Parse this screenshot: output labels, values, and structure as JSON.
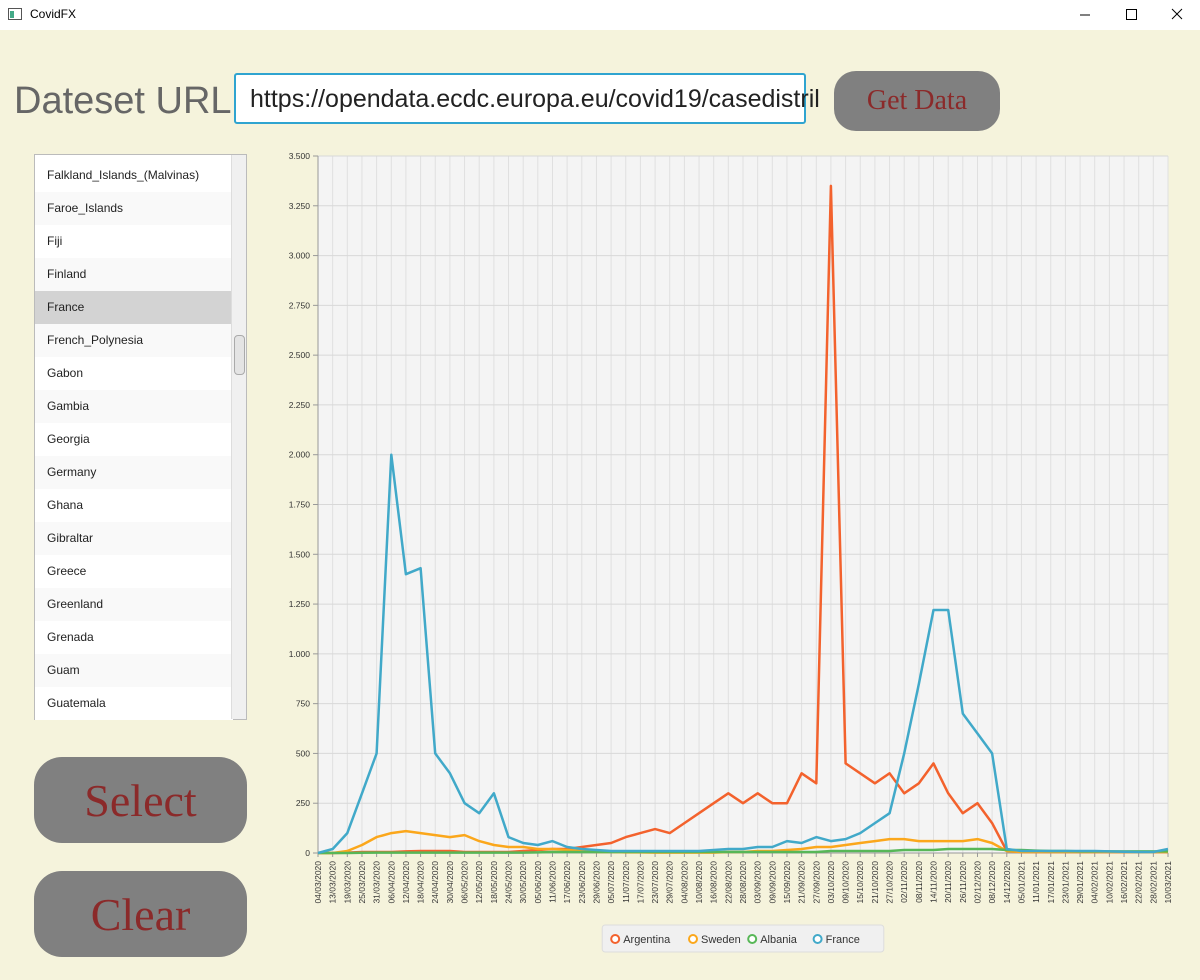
{
  "window": {
    "title": "CovidFX"
  },
  "url_label": "Dateset URL:",
  "url_value": "https://opendata.ecdc.europa.eu/covid19/casedistril",
  "get_data_button": "Get Data",
  "country_list": {
    "items": [
      "Falkland_Islands_(Malvinas)",
      "Faroe_Islands",
      "Fiji",
      "Finland",
      "France",
      "French_Polynesia",
      "Gabon",
      "Gambia",
      "Georgia",
      "Germany",
      "Ghana",
      "Gibraltar",
      "Greece",
      "Greenland",
      "Grenada",
      "Guam",
      "Guatemala"
    ],
    "selected": 4
  },
  "select_button": "Select",
  "clear_button": "Clear",
  "chart_data": {
    "type": "line",
    "categories": [
      "04/03/2020",
      "13/03/2020",
      "19/03/2020",
      "25/03/2020",
      "31/03/2020",
      "06/04/2020",
      "12/04/2020",
      "18/04/2020",
      "24/04/2020",
      "30/04/2020",
      "06/05/2020",
      "12/05/2020",
      "18/05/2020",
      "24/05/2020",
      "30/05/2020",
      "05/06/2020",
      "11/06/2020",
      "17/06/2020",
      "23/06/2020",
      "29/06/2020",
      "05/07/2020",
      "11/07/2020",
      "17/07/2020",
      "23/07/2020",
      "29/07/2020",
      "04/08/2020",
      "10/08/2020",
      "16/08/2020",
      "22/08/2020",
      "28/08/2020",
      "03/09/2020",
      "09/09/2020",
      "15/09/2020",
      "21/09/2020",
      "27/09/2020",
      "03/10/2020",
      "09/10/2020",
      "15/10/2020",
      "21/10/2020",
      "27/10/2020",
      "02/11/2020",
      "08/11/2020",
      "14/11/2020",
      "20/11/2020",
      "26/11/2020",
      "02/12/2020",
      "08/12/2020",
      "14/12/2020",
      "05/01/2021",
      "11/01/2021",
      "17/01/2021",
      "23/01/2021",
      "29/01/2021",
      "04/02/2021",
      "10/02/2021",
      "16/02/2021",
      "22/02/2021",
      "28/02/2021",
      "10/03/2021"
    ],
    "series": [
      {
        "name": "Argentina",
        "color": "#f3622d",
        "values": [
          0,
          0,
          2,
          5,
          5,
          5,
          8,
          10,
          10,
          10,
          5,
          5,
          5,
          5,
          10,
          15,
          20,
          20,
          30,
          40,
          50,
          80,
          100,
          120,
          100,
          150,
          200,
          250,
          300,
          250,
          300,
          250,
          250,
          400,
          350,
          3350,
          450,
          400,
          350,
          400,
          300,
          350,
          450,
          300,
          200,
          250,
          150,
          10,
          5,
          5,
          5,
          5,
          5,
          5,
          5,
          5,
          5,
          5,
          5
        ]
      },
      {
        "name": "Sweden",
        "color": "#fba71b",
        "values": [
          0,
          0,
          10,
          40,
          80,
          100,
          110,
          100,
          90,
          80,
          90,
          60,
          40,
          30,
          30,
          20,
          20,
          15,
          10,
          5,
          5,
          3,
          3,
          2,
          2,
          2,
          2,
          2,
          5,
          5,
          10,
          10,
          15,
          20,
          30,
          30,
          40,
          50,
          60,
          70,
          70,
          60,
          60,
          60,
          60,
          70,
          50,
          10,
          5,
          5,
          5,
          5,
          5,
          5,
          5,
          5,
          5,
          5,
          5
        ]
      },
      {
        "name": "Albania",
        "color": "#57b757",
        "values": [
          0,
          0,
          0,
          1,
          2,
          2,
          2,
          2,
          2,
          2,
          2,
          2,
          2,
          2,
          2,
          3,
          5,
          5,
          5,
          5,
          5,
          5,
          5,
          5,
          5,
          5,
          5,
          5,
          5,
          5,
          5,
          5,
          5,
          5,
          5,
          10,
          10,
          10,
          10,
          10,
          15,
          15,
          15,
          20,
          20,
          20,
          20,
          15,
          15,
          12,
          10,
          10,
          8,
          8,
          8,
          8,
          8,
          8,
          8
        ]
      },
      {
        "name": "France",
        "color": "#41a9c9",
        "values": [
          0,
          20,
          100,
          300,
          500,
          2000,
          1400,
          1430,
          500,
          400,
          250,
          200,
          300,
          80,
          50,
          40,
          60,
          30,
          20,
          15,
          10,
          10,
          10,
          10,
          10,
          10,
          10,
          15,
          20,
          20,
          30,
          30,
          60,
          50,
          80,
          60,
          70,
          100,
          150,
          200,
          500,
          850,
          1220,
          1220,
          700,
          600,
          500,
          20,
          10,
          10,
          10,
          10,
          10,
          10,
          8,
          6,
          5,
          5,
          20
        ]
      }
    ],
    "ylim": [
      0,
      3500
    ],
    "yticks": [
      0,
      250,
      500,
      750,
      {
        "value": 1000,
        "label": "1.000"
      },
      {
        "value": 1250,
        "label": "1.250"
      },
      {
        "value": 1500,
        "label": "1.500"
      },
      {
        "value": 1750,
        "label": "1.750"
      },
      {
        "value": 2000,
        "label": "2.000"
      },
      {
        "value": 2250,
        "label": "2.250"
      },
      {
        "value": 2500,
        "label": "2.500"
      },
      {
        "value": 2750,
        "label": "2.750"
      },
      {
        "value": 3000,
        "label": "3.000"
      },
      {
        "value": 3250,
        "label": "3.250"
      },
      {
        "value": 3500,
        "label": "3.500"
      }
    ],
    "grid": true,
    "legend": "bottom"
  }
}
